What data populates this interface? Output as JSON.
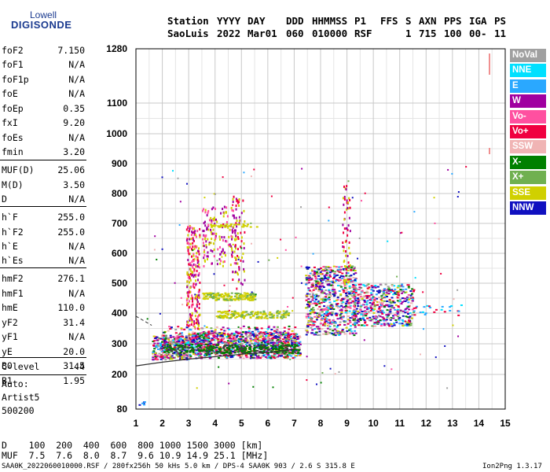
{
  "logo": {
    "line1": "Lowell",
    "line2": "DIGISONDE"
  },
  "header": {
    "row1": [
      "Station",
      "YYYY",
      "DAY",
      "DDD",
      "HHMMSS",
      "P1",
      "FFS",
      "S",
      "AXN",
      "PPS",
      "IGA",
      "PS"
    ],
    "row2": [
      "SaoLuis",
      "2022",
      "Mar01",
      "060",
      "010000",
      "RSF",
      "1",
      "715",
      "100",
      "00-",
      "11"
    ]
  },
  "params": [
    {
      "k": "foF2",
      "v": "7.150"
    },
    {
      "k": "foF1",
      "v": "N/A"
    },
    {
      "k": "foF1p",
      "v": "N/A"
    },
    {
      "k": "foE",
      "v": "N/A"
    },
    {
      "k": "foEp",
      "v": "0.35"
    },
    {
      "k": "fxI",
      "v": "9.20"
    },
    {
      "k": "foEs",
      "v": "N/A"
    },
    {
      "k": "fmin",
      "v": "3.20"
    },
    {
      "k": "MUF(D)",
      "v": "25.06"
    },
    {
      "k": "M(D)",
      "v": "3.50"
    },
    {
      "k": "D",
      "v": "N/A"
    },
    {
      "k": "h`F",
      "v": "255.0"
    },
    {
      "k": "h`F2",
      "v": "255.0"
    },
    {
      "k": "h`E",
      "v": "N/A"
    },
    {
      "k": "h`Es",
      "v": "N/A"
    },
    {
      "k": "hmF2",
      "v": "276.1"
    },
    {
      "k": "hmF1",
      "v": "N/A"
    },
    {
      "k": "hmE",
      "v": "110.0"
    },
    {
      "k": "yF2",
      "v": "31.4"
    },
    {
      "k": "yF1",
      "v": "N/A"
    },
    {
      "k": "yE",
      "v": "20.0"
    },
    {
      "k": "B0",
      "v": "31.5"
    },
    {
      "k": "B1",
      "v": "1.95"
    },
    {
      "k": "C-level",
      "v": "44"
    }
  ],
  "autoscale": {
    "line1": "Auto:",
    "line2": "Artist5",
    "line3": "500200"
  },
  "muf_table": {
    "row1": "D    100  200  400  600  800 1000 1500 3000 [km]",
    "row2": "MUF  7.5  7.6  8.0  8.7  9.6 10.9 14.9 25.1 [MHz]"
  },
  "footer": {
    "left": "SAA0K_2022060010000.RSF / 280fx256h 50 kHs 5.0 km / DPS-4 SAA0K 903 / 2.6 S 315.8 E",
    "right": "Ion2Png 1.3.17"
  },
  "legend": [
    {
      "label": "NoVal",
      "color": "#a0a0a0"
    },
    {
      "label": "NNE",
      "color": "#00e0ff"
    },
    {
      "label": "E",
      "color": "#2aa8ff"
    },
    {
      "label": "W",
      "color": "#a000a0"
    },
    {
      "label": "Vo-",
      "color": "#ff50a0"
    },
    {
      "label": "Vo+",
      "color": "#f00040"
    },
    {
      "label": "SSW",
      "color": "#f0b4b4"
    },
    {
      "label": "X-",
      "color": "#008000"
    },
    {
      "label": "X+",
      "color": "#70b050"
    },
    {
      "label": "SSE",
      "color": "#d0d000"
    },
    {
      "label": "NNW",
      "color": "#1010c0"
    }
  ],
  "chart_data": {
    "type": "scatter",
    "title": "",
    "xlabel": "",
    "ylabel": "",
    "xlim": [
      1,
      15
    ],
    "ylim": [
      80,
      1280
    ],
    "x_ticks": [
      "1",
      "2",
      "3",
      "4",
      "5",
      "6",
      "7",
      "8",
      "9",
      "10",
      "11",
      "12",
      "13",
      "14",
      "15"
    ],
    "y_ticks": [
      "80",
      "200",
      "300",
      "400",
      "500",
      "600",
      "700",
      "800",
      "900",
      "1000",
      "1100",
      "1280"
    ],
    "grid": true,
    "legend_position": "right",
    "trace_curve": [
      [
        1.0,
        228
      ],
      [
        2.0,
        240
      ],
      [
        3.0,
        250
      ],
      [
        4.0,
        258
      ],
      [
        5.0,
        266
      ],
      [
        6.0,
        272
      ],
      [
        7.0,
        282
      ]
    ],
    "trace_curve_dashed": [
      [
        1.0,
        390
      ],
      [
        1.6,
        360
      ]
    ],
    "echo_clusters": [
      {
        "x": [
          1.5,
          7.3
        ],
        "y": [
          240,
          340
        ],
        "density": "high"
      },
      {
        "x": [
          3.0,
          5.0
        ],
        "y": [
          560,
          780
        ],
        "density": "medium"
      },
      {
        "x": [
          7.5,
          11.5
        ],
        "y": [
          330,
          560
        ],
        "density": "high"
      },
      {
        "x": [
          3.5,
          7.0
        ],
        "y": [
          380,
          470
        ],
        "density": "medium"
      }
    ]
  }
}
